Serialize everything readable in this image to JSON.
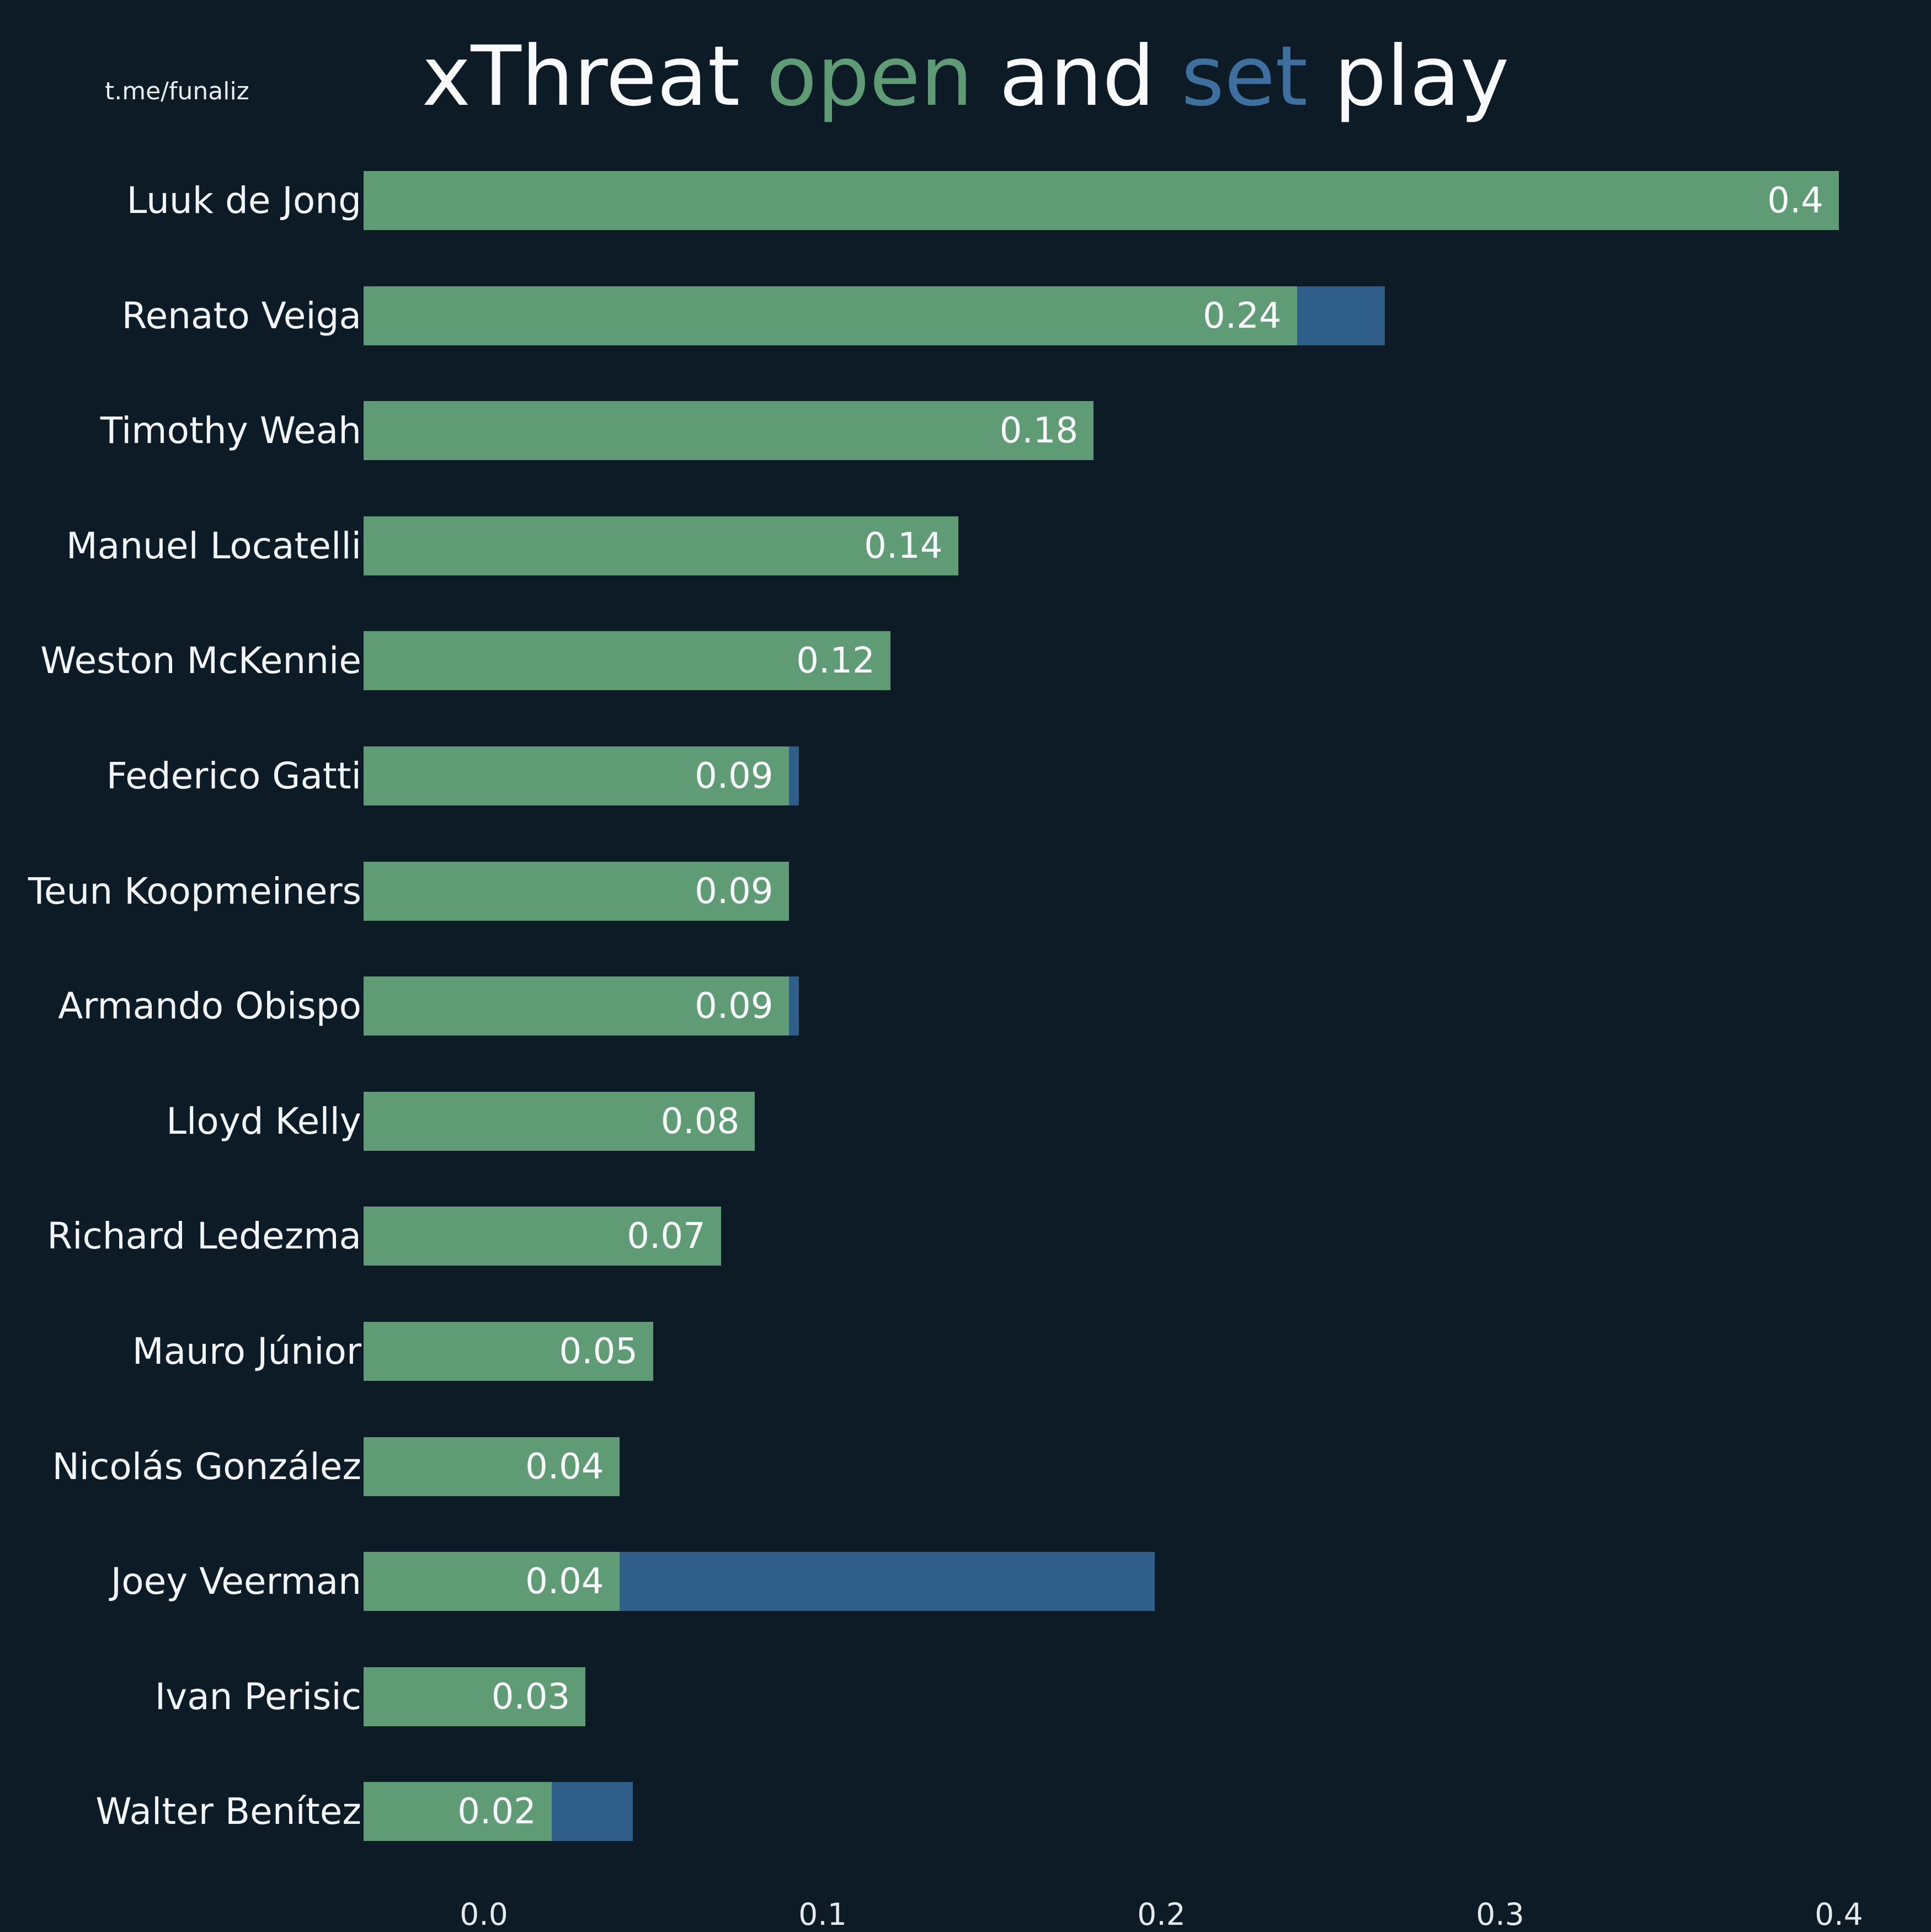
{
  "watermark": "t.me/funaliz",
  "title": {
    "xthreat": "xThreat",
    "open": "open",
    "and": "and",
    "set": "set",
    "play": "play"
  },
  "colors": {
    "background": "#0d1b26",
    "open_bar": "#5f9c76",
    "set_bar": "#2f5e8b",
    "title_open": "#5f9c76",
    "title_set": "#3e6f9f",
    "text": "#f5f7f8"
  },
  "axis": {
    "ticks": [
      "0.0",
      "0.1",
      "0.2",
      "0.3",
      "0.4"
    ]
  },
  "chart_data": {
    "type": "bar",
    "orientation": "horizontal",
    "title": "xThreat open and set play",
    "categories": [
      "Luuk de Jong",
      "Renato Veiga",
      "Timothy Weah",
      "Manuel Locatelli",
      "Weston McKennie",
      "Federico Gatti",
      "Teun Koopmeiners",
      "Armando Obispo",
      "Lloyd Kelly",
      "Richard Ledezma",
      "Mauro Júnior",
      "Nicolás González",
      "Joey Veerman",
      "Ivan Perisic",
      "Walter Benítez"
    ],
    "series": [
      {
        "name": "open play",
        "color": "#5f9c76",
        "values": [
          0.4,
          0.24,
          0.18,
          0.14,
          0.12,
          0.09,
          0.09,
          0.09,
          0.08,
          0.07,
          0.05,
          0.04,
          0.04,
          0.03,
          0.02
        ]
      },
      {
        "name": "set play",
        "color": "#2f5e8b",
        "values": [
          0,
          0.026,
          0,
          0,
          0,
          0.003,
          0,
          0.003,
          0,
          0,
          0,
          0,
          0.158,
          0,
          0.024
        ]
      }
    ],
    "bar_labels": [
      "0.4",
      "0.24",
      "0.18",
      "0.14",
      "0.12",
      "0.09",
      "0.09",
      "0.09",
      "0.08",
      "0.07",
      "0.05",
      "0.04",
      "0.04",
      "0.03",
      "0.02"
    ],
    "x_ticks": [
      0.0,
      0.1,
      0.2,
      0.3,
      0.4
    ],
    "xlim": [
      -0.036,
      0.43
    ],
    "grid": false,
    "legend": "none"
  }
}
